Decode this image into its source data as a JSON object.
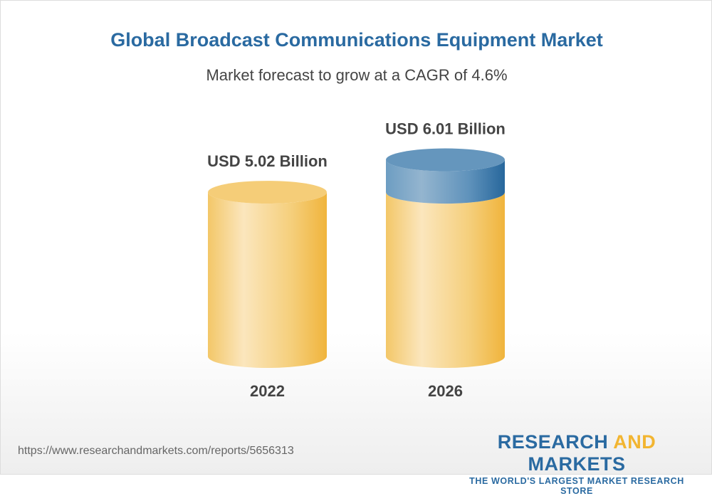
{
  "chart_data": {
    "type": "bar",
    "style": "3d-cylinder",
    "title": "Global Broadcast Communications Equipment Market",
    "subtitle": "Market forecast to grow at a CAGR of 4.6%",
    "categories": [
      "2022",
      "2026"
    ],
    "values": [
      5.02,
      6.01
    ],
    "data_labels": [
      "USD 5.02 Billion",
      "USD 6.01 Billion"
    ],
    "unit": "USD Billion",
    "grid": false,
    "colors": {
      "base": "#f2b531",
      "growth": "#2a6aa1"
    }
  },
  "footer": {
    "url": "https://www.researchandmarkets.com/reports/5656313",
    "logo_part1": "RESEARCH",
    "logo_part2": "AND",
    "logo_part3": "MARKETS",
    "tagline": "THE WORLD'S LARGEST MARKET RESEARCH STORE"
  }
}
